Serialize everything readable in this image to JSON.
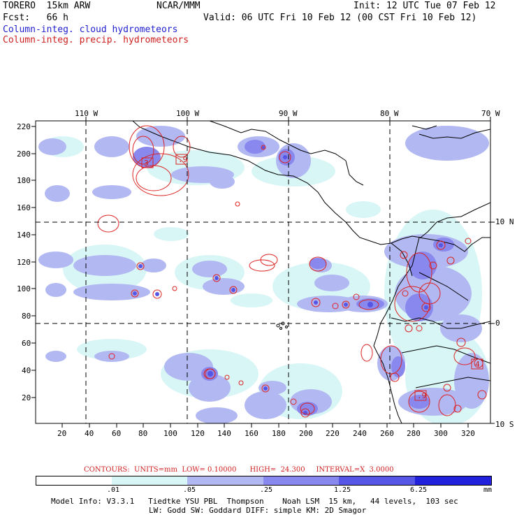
{
  "header": {
    "model": "TORERO  15km ARW",
    "org": "NCAR/MMM",
    "init": "Init: 12 UTC Tue 07 Feb 12",
    "fcst": "Fcst:   66 h",
    "valid": "Valid: 06 UTC Fri 10 Feb 12 (00 CST Fri 10 Feb 12)",
    "field1": "Column-integ. cloud hydrometeors",
    "field2": "Column-integ. precip. hydrometeors"
  },
  "colors": {
    "field1": "#1f1fcf",
    "field2": "#cf1f1f",
    "c1": "#d9f6f6",
    "c2": "#b2b8f2",
    "c3": "#8888ee",
    "c4": "#5555e6",
    "c5": "#2222dd"
  },
  "map": {
    "lon_labels": [
      "110 W",
      "100 W",
      "90 W",
      "80 W",
      "70 W"
    ],
    "lat_labels": [
      "10 N",
      "0",
      "10 S"
    ],
    "y_ticks": [
      "220",
      "200",
      "180",
      "160",
      "140",
      "120",
      "100",
      "80",
      "60",
      "40",
      "20"
    ],
    "x_ticks": [
      "20",
      "40",
      "60",
      "80",
      "100",
      "120",
      "140",
      "160",
      "180",
      "200",
      "220",
      "240",
      "260",
      "280",
      "300",
      "320"
    ]
  },
  "contours_info": "CONTOURS:  UNITS=mm  LOW= 0.10000      HIGH=  24.300     INTERVAL=X  3.0000",
  "legend": {
    "ticks": [
      ".01",
      ".05",
      ".25",
      "1.25",
      "6.25"
    ],
    "unit": "mm"
  },
  "footer": {
    "line1": "Model Info: V3.3.1   Tiedtke YSU PBL  Thompson    Noah LSM  15 km,   44 levels,  103 sec",
    "line2": "LW: Godd SW: Goddard DIFF: simple KM: 2D Smagor"
  }
}
